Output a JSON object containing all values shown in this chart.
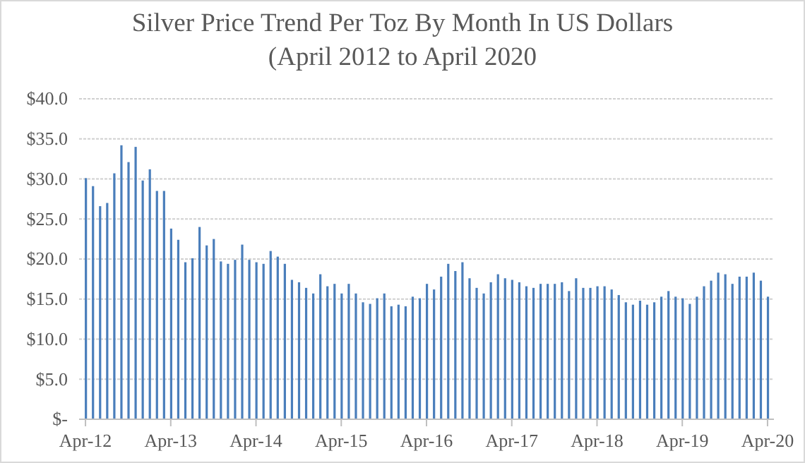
{
  "chart_data": {
    "type": "bar",
    "title": "Silver Price Trend Per Toz By Month In US Dollars\n(April 2012 to April 2020",
    "categories": [
      "Apr-12",
      null,
      null,
      null,
      null,
      null,
      null,
      null,
      null,
      null,
      null,
      null,
      "Apr-13",
      null,
      null,
      null,
      null,
      null,
      null,
      null,
      null,
      null,
      null,
      null,
      "Apr-14",
      null,
      null,
      null,
      null,
      null,
      null,
      null,
      null,
      null,
      null,
      null,
      "Apr-15",
      null,
      null,
      null,
      null,
      null,
      null,
      null,
      null,
      null,
      null,
      null,
      "Apr-16",
      null,
      null,
      null,
      null,
      null,
      null,
      null,
      null,
      null,
      null,
      null,
      "Apr-17",
      null,
      null,
      null,
      null,
      null,
      null,
      null,
      null,
      null,
      null,
      null,
      "Apr-18",
      null,
      null,
      null,
      null,
      null,
      null,
      null,
      null,
      null,
      null,
      null,
      "Apr-19",
      null,
      null,
      null,
      null,
      null,
      null,
      null,
      null,
      null,
      null,
      null,
      "Apr-20"
    ],
    "values": [
      30.1,
      29.1,
      26.6,
      27.0,
      30.7,
      34.2,
      32.1,
      34.0,
      29.8,
      31.2,
      28.5,
      28.5,
      23.8,
      22.4,
      19.6,
      20.1,
      24.0,
      21.7,
      22.5,
      19.7,
      19.4,
      19.9,
      21.8,
      19.9,
      19.6,
      19.4,
      21.0,
      20.3,
      19.4,
      17.4,
      17.1,
      16.4,
      15.7,
      18.1,
      16.6,
      16.9,
      15.7,
      16.9,
      15.7,
      14.6,
      14.4,
      15.1,
      15.7,
      14.1,
      14.3,
      14.1,
      15.3,
      15.1,
      16.9,
      16.2,
      17.8,
      19.4,
      18.5,
      19.6,
      17.6,
      16.4,
      15.7,
      17.1,
      18.1,
      17.6,
      17.4,
      17.1,
      16.6,
      16.4,
      16.9,
      16.9,
      16.9,
      17.1,
      16.0,
      17.6,
      16.4,
      16.4,
      16.6,
      16.6,
      16.2,
      15.5,
      14.6,
      14.3,
      14.8,
      14.3,
      14.6,
      15.3,
      16.0,
      15.3,
      15.1,
      14.4,
      15.3,
      16.6,
      17.3,
      18.3,
      18.1,
      16.9,
      17.8,
      17.8,
      18.3,
      17.3,
      15.3
    ],
    "color": "#4a7ebb",
    "ylim": [
      0,
      40
    ],
    "yticks": [
      {
        "value": 0,
        "label": "$-"
      },
      {
        "value": 5,
        "label": "$5.0"
      },
      {
        "value": 10,
        "label": "$10.0"
      },
      {
        "value": 15,
        "label": "$15.0"
      },
      {
        "value": 20,
        "label": "$20.0"
      },
      {
        "value": 25,
        "label": "$25.0"
      },
      {
        "value": 30,
        "label": "$30.0"
      },
      {
        "value": 35,
        "label": "$35.0"
      },
      {
        "value": 40,
        "label": "$40.0"
      }
    ],
    "grid": "y"
  }
}
